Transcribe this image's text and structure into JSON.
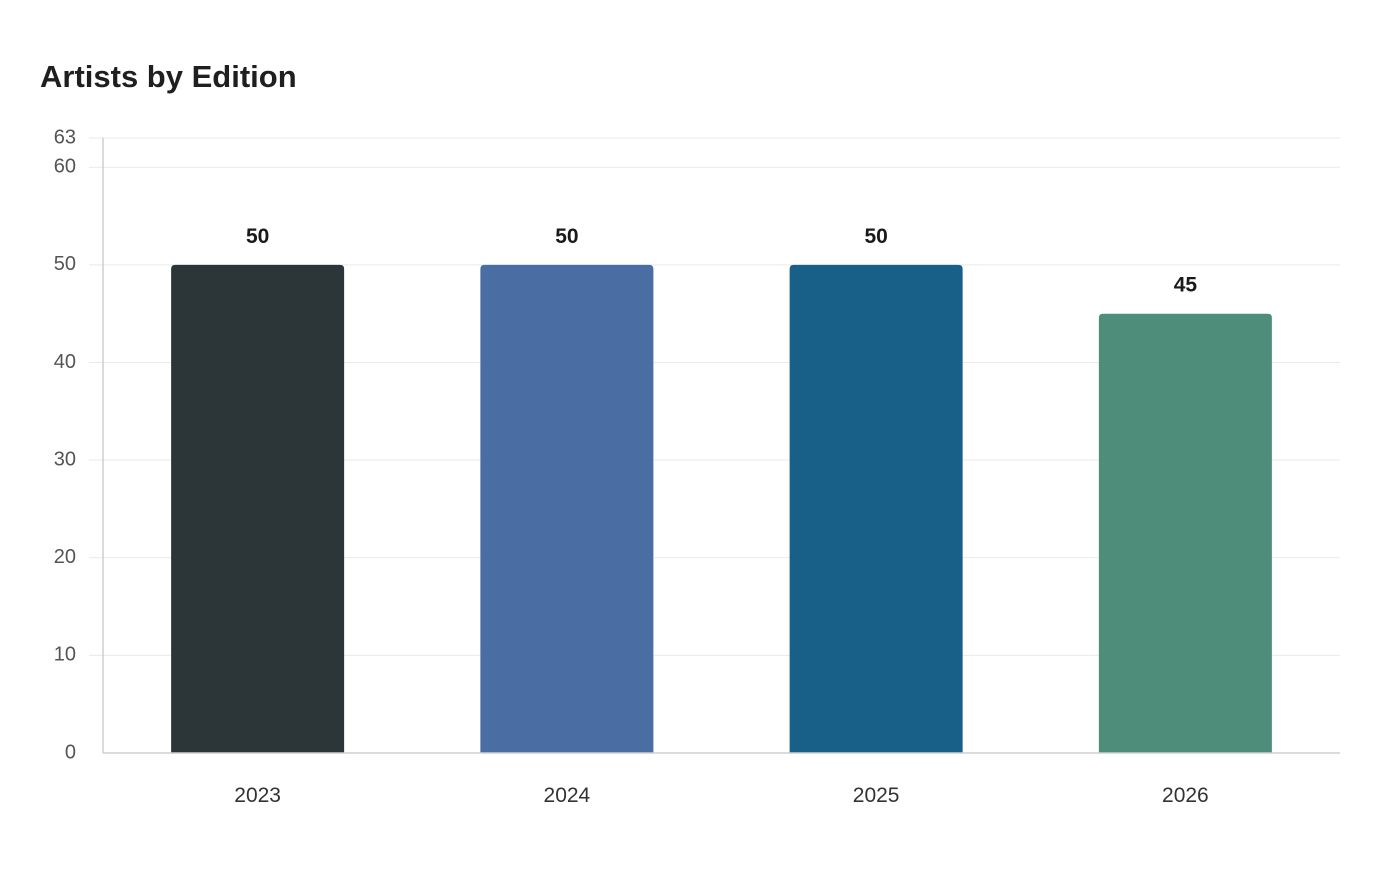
{
  "chart_data": {
    "type": "bar",
    "title": "Artists by Edition",
    "xlabel": "",
    "ylabel": "",
    "categories": [
      "2023",
      "2024",
      "2025",
      "2026"
    ],
    "values": [
      50,
      50,
      50,
      45
    ],
    "colors": [
      "#2c3538",
      "#4a6ea3",
      "#186088",
      "#4e8d7a"
    ],
    "data_labels": [
      "50",
      "50",
      "50",
      "45"
    ],
    "yticks": [
      0,
      10,
      20,
      30,
      40,
      50,
      60,
      63
    ],
    "ylim": [
      0,
      63
    ],
    "grid": true,
    "legend": "none"
  }
}
